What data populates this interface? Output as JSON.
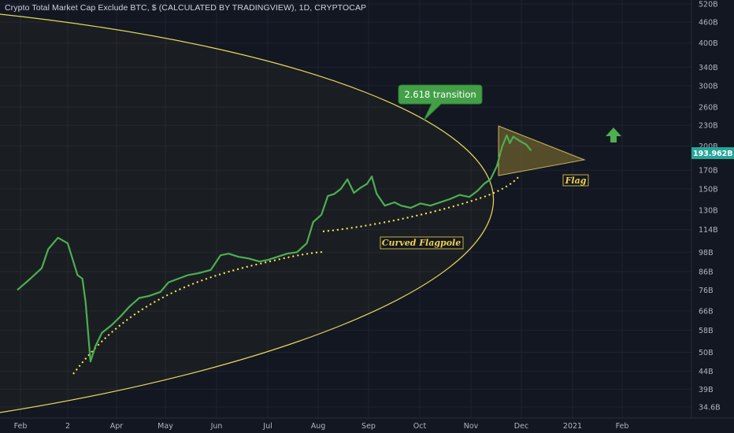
{
  "header": {
    "title": "Crypto Total Market Cap Exclude BTC, $ (CALCULATED BY TRADINGVIEW), 1D, CRYPTOCAP"
  },
  "colors": {
    "background": "#131722",
    "price_line": "#4caf50",
    "ellipse": "#e6d95a",
    "trendline_dots": "#ffee58",
    "triangle_fill": "#7a6a2a",
    "callout_bg": "#43a047",
    "arrow": "#4caf50",
    "badge": "#26a69a"
  },
  "annotations": {
    "callout_text": "2.618 transition",
    "flagpole_text": "Curved Flagpole",
    "flag_text": "Flag",
    "up_arrow_icon": "up-arrow-icon"
  },
  "chart_data": {
    "type": "line",
    "title": "Crypto Total Market Cap Exclude BTC, $ (CALCULATED BY TRADINGVIEW), 1D, CRYPTOCAP",
    "y_scale": "log",
    "grid": true,
    "y_ticks": [
      "520B",
      "460B",
      "400B",
      "340B",
      "300B",
      "260B",
      "230B",
      "200B",
      "170B",
      "150B",
      "130B",
      "114B",
      "98B",
      "86B",
      "76B",
      "66B",
      "58B",
      "50B",
      "44B",
      "39B",
      "34.6B"
    ],
    "x_ticks": [
      "Feb",
      "2",
      "Apr",
      "May",
      "Jun",
      "Jul",
      "Aug",
      "Sep",
      "Oct",
      "Nov",
      "Dec",
      "2021",
      "Feb"
    ],
    "last_price": "193.962B",
    "series": [
      {
        "x": [
          "2020-01-28",
          "2020-02-05",
          "2020-02-12",
          "2020-02-16",
          "2020-02-22",
          "2020-02-28",
          "2020-03-05",
          "2020-03-08",
          "2020-03-10",
          "2020-03-13",
          "2020-03-16",
          "2020-03-20",
          "2020-03-26",
          "2020-04-01",
          "2020-04-06",
          "2020-04-12",
          "2020-04-18",
          "2020-04-25",
          "2020-04-30",
          "2020-05-06",
          "2020-05-12",
          "2020-05-18",
          "2020-05-26",
          "2020-06-01",
          "2020-06-06",
          "2020-06-12",
          "2020-06-18",
          "2020-06-25",
          "2020-06-30",
          "2020-07-06",
          "2020-07-12",
          "2020-07-18",
          "2020-07-24",
          "2020-07-28",
          "2020-08-02",
          "2020-08-06",
          "2020-08-10",
          "2020-08-14",
          "2020-08-18",
          "2020-08-22",
          "2020-08-26",
          "2020-08-30",
          "2020-09-02",
          "2020-09-05",
          "2020-09-10",
          "2020-09-16",
          "2020-09-20",
          "2020-09-26",
          "2020-10-02",
          "2020-10-08",
          "2020-10-14",
          "2020-10-20",
          "2020-10-26",
          "2020-11-01",
          "2020-11-06",
          "2020-11-10",
          "2020-11-14",
          "2020-11-18",
          "2020-11-21",
          "2020-11-24",
          "2020-11-26",
          "2020-11-28",
          "2020-12-02",
          "2020-12-06",
          "2020-12-09"
        ],
        "values": [
          76,
          82,
          88,
          100,
          108,
          104,
          84,
          82,
          70,
          47,
          52,
          57,
          60,
          64,
          68,
          72,
          73,
          75,
          80,
          82,
          84,
          85,
          87,
          96,
          97,
          95,
          94,
          92,
          93,
          95,
          97,
          98,
          104,
          120,
          126,
          143,
          145,
          150,
          160,
          146,
          151,
          155,
          163,
          145,
          134,
          137,
          134,
          132,
          136,
          134,
          137,
          140,
          144,
          142,
          148,
          155,
          160,
          175,
          198,
          215,
          204,
          213,
          207,
          202,
          194
        ]
      }
    ],
    "ylim": [
      "34.6B",
      "520B"
    ]
  }
}
